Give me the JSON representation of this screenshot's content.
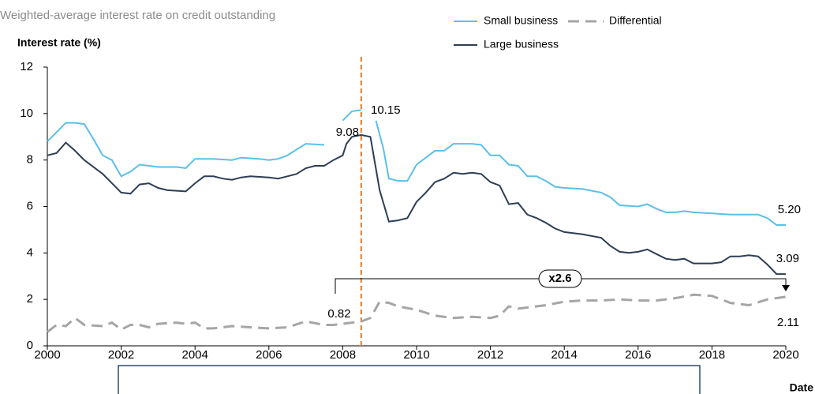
{
  "chart_data": {
    "type": "line",
    "title": "Weighted-average interest rate on credit outstanding",
    "ylabel": "Interest rate (%)",
    "xlabel": "Date",
    "xlim": [
      2000,
      2020
    ],
    "xticks": [
      2000,
      2002,
      2004,
      2006,
      2008,
      2010,
      2012,
      2014,
      2016,
      2018,
      2020
    ],
    "ylim": [
      0,
      12
    ],
    "yticks": [
      0,
      2,
      4,
      6,
      8,
      10,
      12
    ],
    "grid": false,
    "vline_x": 2008.5,
    "vline_color": "#e07b2a",
    "series": [
      {
        "name": "Small business",
        "color": "#5bbfea",
        "x": [
          2000,
          2000.25,
          2000.5,
          2000.75,
          2001,
          2001.25,
          2001.5,
          2001.75,
          2002,
          2002.25,
          2002.5,
          2002.75,
          2003,
          2003.5,
          2003.75,
          2004,
          2004.5,
          2005,
          2005.25,
          2005.75,
          2006,
          2006.25,
          2006.5,
          2007,
          2007.5,
          2007.75,
          2008,
          2008.25,
          2008.5,
          2008.75,
          2008.9,
          2009.1,
          2009.25,
          2009.5,
          2009.75,
          2010,
          2010.25,
          2010.5,
          2010.75,
          2011,
          2011.5,
          2011.75,
          2012,
          2012.25,
          2012.5,
          2012.75,
          2013,
          2013.25,
          2013.5,
          2013.75,
          2014,
          2014.5,
          2015,
          2015.25,
          2015.5,
          2016,
          2016.25,
          2016.5,
          2016.75,
          2017,
          2017.25,
          2017.5,
          2018,
          2018.5,
          2019,
          2019.25,
          2019.5,
          2019.75,
          2020
        ],
        "values": [
          8.8,
          9.2,
          9.6,
          9.6,
          9.55,
          8.9,
          8.2,
          8.0,
          7.3,
          7.5,
          7.8,
          7.75,
          7.7,
          7.7,
          7.65,
          8.05,
          8.05,
          8.0,
          8.1,
          8.05,
          8.0,
          8.05,
          8.2,
          8.7,
          8.65,
          null,
          9.7,
          10.1,
          10.15,
          null,
          9.7,
          8.5,
          7.2,
          7.1,
          7.1,
          7.8,
          8.1,
          8.4,
          8.4,
          8.7,
          8.7,
          8.65,
          8.2,
          8.2,
          7.8,
          7.75,
          7.3,
          7.3,
          7.1,
          6.85,
          6.8,
          6.75,
          6.6,
          6.4,
          6.05,
          6.0,
          6.1,
          5.9,
          5.75,
          5.75,
          5.8,
          5.75,
          5.7,
          5.65,
          5.65,
          5.65,
          5.5,
          5.2,
          5.2
        ]
      },
      {
        "name": "Large business",
        "color": "#2d3e55",
        "x": [
          2000,
          2000.25,
          2000.5,
          2000.75,
          2001,
          2001.5,
          2001.75,
          2002,
          2002.25,
          2002.5,
          2002.75,
          2003,
          2003.25,
          2003.75,
          2004,
          2004.25,
          2004.5,
          2004.75,
          2005,
          2005.25,
          2005.5,
          2006,
          2006.25,
          2006.5,
          2006.75,
          2007,
          2007.25,
          2007.5,
          2007.75,
          2008,
          2008.1,
          2008.25,
          2008.5,
          2008.75,
          2009,
          2009.25,
          2009.5,
          2009.75,
          2010,
          2010.25,
          2010.5,
          2010.75,
          2011,
          2011.25,
          2011.5,
          2011.75,
          2012,
          2012.25,
          2012.5,
          2012.75,
          2013,
          2013.25,
          2013.5,
          2013.75,
          2014,
          2014.5,
          2015,
          2015.25,
          2015.5,
          2015.75,
          2016,
          2016.25,
          2016.5,
          2016.75,
          2017,
          2017.25,
          2017.5,
          2018,
          2018.25,
          2018.5,
          2018.75,
          2019,
          2019.25,
          2019.5,
          2019.75,
          2020
        ],
        "values": [
          8.2,
          8.3,
          8.75,
          8.4,
          8.0,
          7.4,
          7.0,
          6.6,
          6.55,
          6.95,
          7.0,
          6.8,
          6.7,
          6.65,
          7.0,
          7.3,
          7.3,
          7.2,
          7.15,
          7.25,
          7.3,
          7.25,
          7.2,
          7.3,
          7.4,
          7.65,
          7.75,
          7.75,
          8.0,
          8.2,
          8.7,
          9.0,
          9.08,
          9.0,
          6.7,
          5.35,
          5.4,
          5.5,
          6.2,
          6.6,
          7.05,
          7.2,
          7.45,
          7.4,
          7.45,
          7.4,
          7.05,
          6.9,
          6.1,
          6.15,
          5.65,
          5.5,
          5.3,
          5.05,
          4.9,
          4.8,
          4.65,
          4.3,
          4.05,
          4.0,
          4.05,
          4.15,
          3.95,
          3.75,
          3.7,
          3.75,
          3.55,
          3.55,
          3.6,
          3.85,
          3.85,
          3.9,
          3.85,
          3.5,
          3.09,
          3.09
        ]
      },
      {
        "name": "Differential",
        "color": "#a6a6a6",
        "dashed": true,
        "x": [
          2000,
          2000.25,
          2000.5,
          2000.75,
          2001,
          2001.5,
          2001.75,
          2002,
          2002.25,
          2002.5,
          2002.75,
          2003,
          2003.5,
          2003.75,
          2004,
          2004.25,
          2004.5,
          2005,
          2005.5,
          2006,
          2006.5,
          2007,
          2007.5,
          2007.75,
          2008,
          2008.25,
          2008.5,
          2008.75,
          2009,
          2009.25,
          2009.5,
          2010,
          2010.5,
          2011,
          2011.5,
          2012,
          2012.25,
          2012.5,
          2012.75,
          2013,
          2013.5,
          2014,
          2014.5,
          2015,
          2015.5,
          2016,
          2016.5,
          2017,
          2017.5,
          2018,
          2018.5,
          2019,
          2019.5,
          2020
        ],
        "values": [
          0.6,
          0.9,
          0.85,
          1.2,
          0.9,
          0.85,
          1.0,
          0.7,
          0.9,
          0.9,
          0.8,
          0.95,
          1.0,
          0.95,
          1.0,
          0.75,
          0.75,
          0.85,
          0.8,
          0.75,
          0.8,
          1.05,
          0.9,
          0.9,
          0.95,
          1.0,
          1.05,
          1.2,
          1.9,
          1.85,
          1.7,
          1.55,
          1.3,
          1.2,
          1.25,
          1.2,
          1.3,
          1.7,
          1.6,
          1.65,
          1.75,
          1.9,
          1.95,
          1.95,
          2.0,
          1.95,
          1.95,
          2.05,
          2.2,
          2.15,
          1.85,
          1.75,
          2.0,
          2.11
        ]
      }
    ],
    "annotations": [
      "10.15",
      "9.08",
      "5.20",
      "3.09",
      "2.11",
      "0.82",
      "x2.6"
    ]
  }
}
